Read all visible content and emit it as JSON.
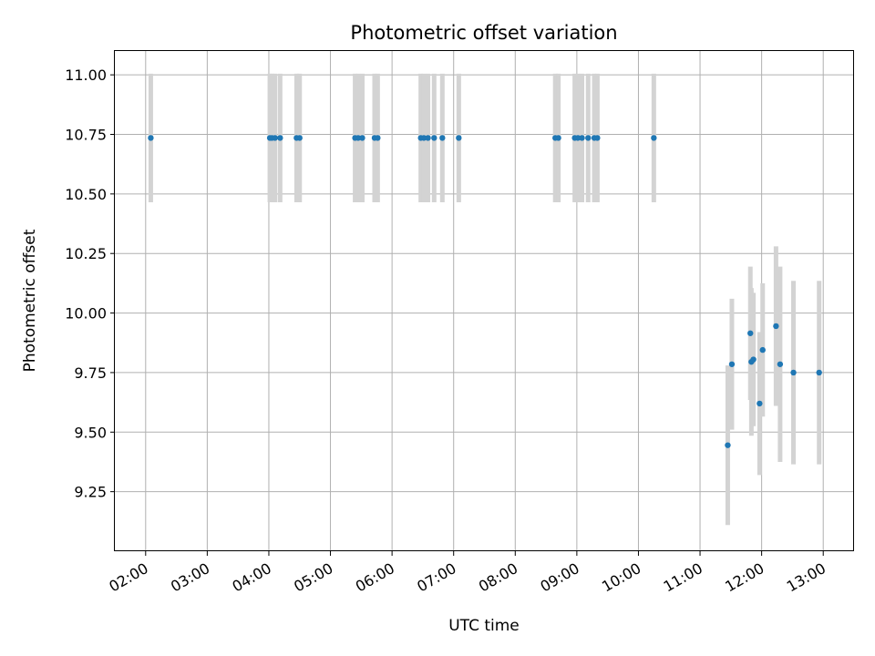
{
  "chart_data": {
    "type": "scatter",
    "title": "Photometric offset variation",
    "xlabel": "UTC time",
    "ylabel": "Photometric offset",
    "grid": true,
    "xlim": [
      "01:30",
      "13:30"
    ],
    "ylim": [
      9.0,
      11.1
    ],
    "x_ticks": [
      "02:00",
      "03:00",
      "04:00",
      "05:00",
      "06:00",
      "07:00",
      "08:00",
      "09:00",
      "10:00",
      "11:00",
      "12:00",
      "13:00"
    ],
    "y_ticks": [
      "9.25",
      "9.50",
      "9.75",
      "10.00",
      "10.25",
      "10.50",
      "10.75",
      "11.00"
    ],
    "colors": {
      "point": "#1f77b4",
      "errorbar": "#d3d3d3",
      "grid": "#b0b0b0"
    },
    "series": [
      {
        "points": [
          {
            "x": "02:05",
            "y": 10.735,
            "err": 0.27
          },
          {
            "x": "04:01",
            "y": 10.735,
            "err": 0.27
          },
          {
            "x": "04:03",
            "y": 10.735,
            "err": 0.27
          },
          {
            "x": "04:06",
            "y": 10.735,
            "err": 0.27
          },
          {
            "x": "04:11",
            "y": 10.735,
            "err": 0.27
          },
          {
            "x": "04:27",
            "y": 10.735,
            "err": 0.27
          },
          {
            "x": "04:30",
            "y": 10.735,
            "err": 0.27
          },
          {
            "x": "05:24",
            "y": 10.735,
            "err": 0.27
          },
          {
            "x": "05:27",
            "y": 10.735,
            "err": 0.27
          },
          {
            "x": "05:31",
            "y": 10.735,
            "err": 0.27
          },
          {
            "x": "05:43",
            "y": 10.735,
            "err": 0.27
          },
          {
            "x": "05:46",
            "y": 10.735,
            "err": 0.27
          },
          {
            "x": "06:28",
            "y": 10.735,
            "err": 0.27
          },
          {
            "x": "06:31",
            "y": 10.735,
            "err": 0.27
          },
          {
            "x": "06:35",
            "y": 10.735,
            "err": 0.27
          },
          {
            "x": "06:41",
            "y": 10.735,
            "err": 0.27
          },
          {
            "x": "06:49",
            "y": 10.735,
            "err": 0.27
          },
          {
            "x": "07:05",
            "y": 10.735,
            "err": 0.27
          },
          {
            "x": "08:39",
            "y": 10.735,
            "err": 0.27
          },
          {
            "x": "08:42",
            "y": 10.735,
            "err": 0.27
          },
          {
            "x": "08:58",
            "y": 10.735,
            "err": 0.27
          },
          {
            "x": "09:01",
            "y": 10.735,
            "err": 0.27
          },
          {
            "x": "09:05",
            "y": 10.735,
            "err": 0.27
          },
          {
            "x": "09:11",
            "y": 10.735,
            "err": 0.27
          },
          {
            "x": "09:17",
            "y": 10.735,
            "err": 0.27
          },
          {
            "x": "09:20",
            "y": 10.735,
            "err": 0.27
          },
          {
            "x": "10:15",
            "y": 10.735,
            "err": 0.27
          },
          {
            "x": "11:27",
            "y": 9.445,
            "err": 0.335
          },
          {
            "x": "11:31",
            "y": 9.785,
            "err": 0.275
          },
          {
            "x": "11:49",
            "y": 9.915,
            "err": 0.28
          },
          {
            "x": "11:50",
            "y": 9.795,
            "err": 0.31
          },
          {
            "x": "11:52",
            "y": 9.805,
            "err": 0.28
          },
          {
            "x": "11:58",
            "y": 9.62,
            "err": 0.3
          },
          {
            "x": "12:01",
            "y": 9.845,
            "err": 0.28
          },
          {
            "x": "12:14",
            "y": 9.945,
            "err": 0.335
          },
          {
            "x": "12:18",
            "y": 9.785,
            "err": 0.41
          },
          {
            "x": "12:31",
            "y": 9.75,
            "err": 0.385
          },
          {
            "x": "12:56",
            "y": 9.75,
            "err": 0.385
          }
        ]
      }
    ]
  }
}
